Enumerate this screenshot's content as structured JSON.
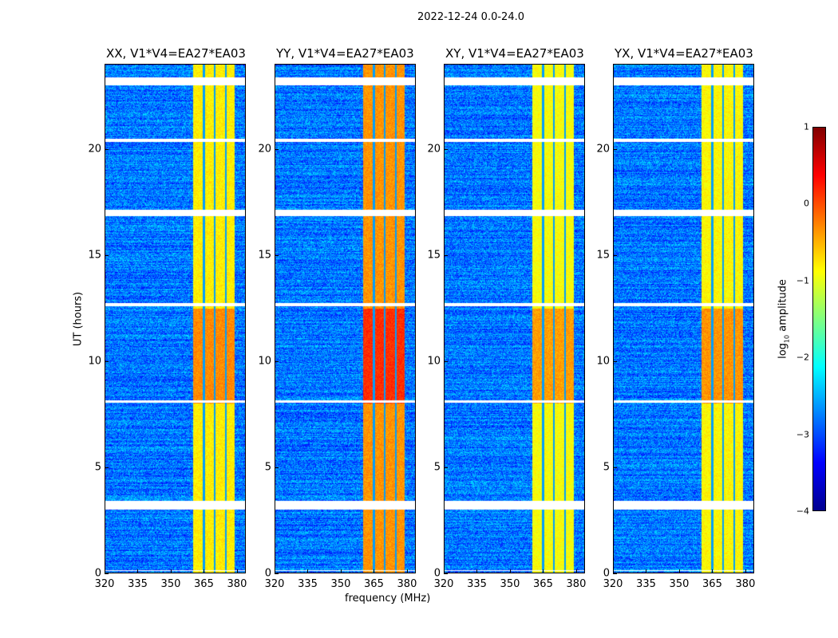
{
  "chart_data": {
    "type": "heatmap",
    "title": "2022-12-24 0.0-24.0",
    "xlabel": "frequency (MHz)",
    "ylabel": "UT (hours)",
    "xlim": [
      320,
      384
    ],
    "ylim": [
      0,
      24
    ],
    "xticks": [
      320,
      335,
      350,
      365,
      380
    ],
    "yticks": [
      0,
      5,
      10,
      15,
      20
    ],
    "colorbar": {
      "label": "log10 amplitude",
      "label_main": "log",
      "label_sub": "10",
      "label_rest": " amplitude",
      "range": [
        -4,
        1
      ],
      "ticks": [
        1,
        0,
        -1,
        -2,
        -3,
        -4
      ],
      "tick_labels": [
        "1",
        "0",
        "−1",
        "−2",
        "−3",
        "−4"
      ],
      "colormap": "jet"
    },
    "background_level": -2.8,
    "rfi_band_MHz": [
      360,
      379
    ],
    "flagged_hours": [
      [
        23.05,
        23.4
      ],
      [
        20.35,
        20.5
      ],
      [
        16.85,
        17.15
      ],
      [
        12.6,
        12.75
      ],
      [
        8.05,
        8.15
      ],
      [
        3.0,
        3.4
      ],
      [
        0.1,
        0.15
      ]
    ],
    "panels": [
      {
        "title": "XX, V1*V4=EA27*EA03",
        "band_level": -0.8
      },
      {
        "title": "YY, V1*V4=EA27*EA03",
        "band_level": -0.35
      },
      {
        "title": "XY, V1*V4=EA27*EA03",
        "band_level": -0.9
      },
      {
        "title": "YX, V1*V4=EA27*EA03",
        "band_level": -0.85
      }
    ]
  }
}
